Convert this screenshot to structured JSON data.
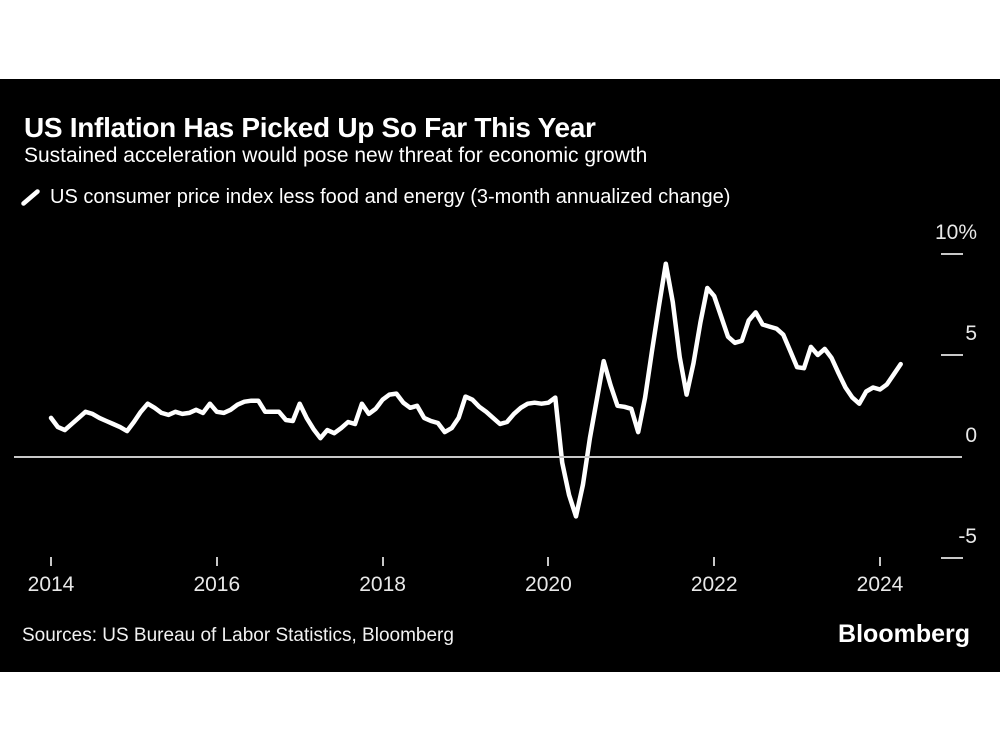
{
  "header": {
    "title": "US Inflation Has Picked Up So Far This Year",
    "subtitle": "Sustained acceleration would pose new threat for economic growth"
  },
  "legend": {
    "label": "US consumer price index less food and energy (3-month annualized change)"
  },
  "chart_data": {
    "type": "line",
    "title": "US Inflation Has Picked Up So Far This Year",
    "series_name": "US consumer price index less food and energy (3-month annualized change)",
    "frequency": "monthly",
    "start_year": 2014,
    "start_month": 1,
    "end_label": "2024-04",
    "unit": "percent",
    "values": [
      1.9,
      1.45,
      1.3,
      1.6,
      1.9,
      2.2,
      2.1,
      1.9,
      1.75,
      1.6,
      1.45,
      1.25,
      1.7,
      2.2,
      2.6,
      2.4,
      2.15,
      2.05,
      2.2,
      2.1,
      2.15,
      2.3,
      2.15,
      2.6,
      2.2,
      2.15,
      2.3,
      2.55,
      2.7,
      2.75,
      2.75,
      2.2,
      2.2,
      2.2,
      1.8,
      1.75,
      2.6,
      1.9,
      1.35,
      0.9,
      1.3,
      1.15,
      1.4,
      1.7,
      1.6,
      2.6,
      2.1,
      2.35,
      2.8,
      3.05,
      3.1,
      2.65,
      2.4,
      2.5,
      1.9,
      1.75,
      1.65,
      1.2,
      1.4,
      1.9,
      2.95,
      2.8,
      2.45,
      2.2,
      1.9,
      1.6,
      1.7,
      2.1,
      2.4,
      2.6,
      2.65,
      2.6,
      2.65,
      2.9,
      -0.3,
      -1.9,
      -2.95,
      -1.4,
      0.9,
      2.8,
      4.7,
      3.5,
      2.5,
      2.45,
      2.35,
      1.2,
      2.9,
      5.2,
      7.4,
      9.5,
      7.6,
      4.9,
      3.05,
      4.6,
      6.6,
      8.3,
      7.9,
      6.9,
      5.9,
      5.6,
      5.7,
      6.7,
      7.1,
      6.5,
      6.4,
      6.3,
      6.0,
      5.2,
      4.4,
      4.35,
      5.4,
      5.0,
      5.3,
      4.85,
      4.1,
      3.4,
      2.9,
      2.6,
      3.2,
      3.4,
      3.3,
      3.55,
      4.05,
      4.55
    ],
    "x_ticks": [
      {
        "label": "2014",
        "year": 2014
      },
      {
        "label": "2016",
        "year": 2016
      },
      {
        "label": "2018",
        "year": 2018
      },
      {
        "label": "2020",
        "year": 2020
      },
      {
        "label": "2022",
        "year": 2022
      },
      {
        "label": "2024",
        "year": 2024
      }
    ],
    "y_ticks": [
      {
        "label": "10%",
        "value": 10
      },
      {
        "label": "5",
        "value": 5
      },
      {
        "label": "0",
        "value": 0
      },
      {
        "label": "-5",
        "value": -5
      }
    ],
    "ylim": [
      -5.5,
      10.5
    ],
    "grid": "zero-line-only",
    "legend_position": "top-left",
    "line_color": "#ffffff"
  },
  "footer": {
    "sources": "Sources: US Bureau of Labor Statistics, Bloomberg",
    "logo": "Bloomberg"
  },
  "colors": {
    "page_bg": "#ffffff",
    "card_bg": "#000000",
    "text": "#ffffff",
    "axis_text": "#e8e8e8",
    "axis_line": "#c8c8c8",
    "line": "#ffffff"
  }
}
